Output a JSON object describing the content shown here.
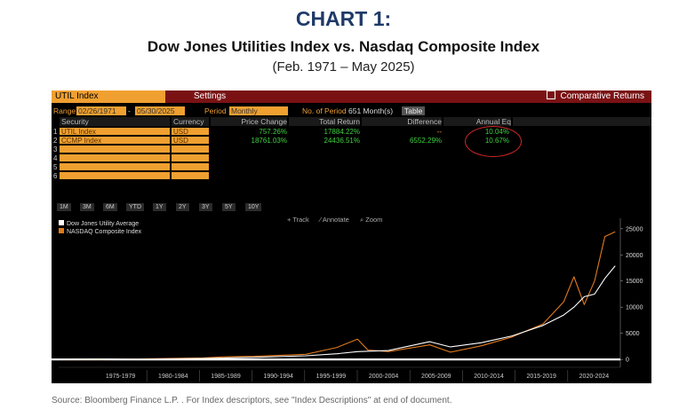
{
  "header": {
    "title": "CHART 1:",
    "subtitle": "Dow Jones Utilities Index vs. Nasdaq Composite Index",
    "date_range": "(Feb. 1971 – May 2025)"
  },
  "terminal": {
    "tabs": {
      "util": "UTIL Index",
      "settings": "Settings",
      "comparative": "Comparative Returns"
    },
    "range": {
      "range_label": "Range",
      "start": "02/26/1971",
      "dash": "-",
      "end": "05/30/2025",
      "period_label": "Period",
      "period": "Monthly",
      "nop_label": "No. of Period",
      "nop_value": "651 Month(s)",
      "table_btn": "Table"
    },
    "columns": {
      "security": "Security",
      "currency": "Currency",
      "price_change": "Price Change",
      "total_return": "Total Return",
      "difference": "Difference",
      "annual_eq": "Annual Eq"
    },
    "rows": [
      {
        "num": "1",
        "security": "UTIL Index",
        "currency": "USD",
        "price_change": "757.26%",
        "total_return": "17884.22%",
        "difference": "--",
        "annual_eq": "10.04%"
      },
      {
        "num": "2",
        "security": "CCMP Index",
        "currency": "USD",
        "price_change": "18761.03%",
        "total_return": "24436.51%",
        "difference": "6552.29%",
        "annual_eq": "10.67%"
      },
      {
        "num": "3"
      },
      {
        "num": "4"
      },
      {
        "num": "5"
      },
      {
        "num": "6"
      }
    ],
    "period_buttons": [
      "1M",
      "3M",
      "6M",
      "YTD",
      "1Y",
      "2Y",
      "3Y",
      "5Y",
      "10Y"
    ],
    "toolbar": {
      "track": "+ Track",
      "annotate": "⁄ Annotate",
      "zoom": "⌕ Zoom"
    }
  },
  "chart_data": {
    "type": "line",
    "series": [
      {
        "name": "Dow Jones Utility Average",
        "color": "#ffffff",
        "x": [
          1971,
          1975,
          1980,
          1985,
          1987,
          1990,
          1995,
          1998,
          2000,
          2003,
          2007,
          2009,
          2012,
          2015,
          2018,
          2020,
          2021,
          2022,
          2023,
          2024,
          2025
        ],
        "y": [
          0,
          20,
          80,
          180,
          280,
          400,
          700,
          1100,
          1500,
          1700,
          3400,
          2400,
          3200,
          4500,
          6500,
          8500,
          10000,
          12000,
          12500,
          15500,
          17900
        ]
      },
      {
        "name": "NASDAQ Composite Index",
        "color": "#e07a1c",
        "x": [
          1971,
          1975,
          1980,
          1985,
          1987,
          1990,
          1995,
          1998,
          2000,
          2001,
          2003,
          2007,
          2009,
          2012,
          2015,
          2018,
          2020,
          2021,
          2022,
          2023,
          2024,
          2025
        ],
        "y": [
          0,
          -20,
          150,
          300,
          500,
          600,
          1000,
          2300,
          3900,
          1800,
          1500,
          2800,
          1400,
          2600,
          4300,
          6800,
          11000,
          15800,
          10500,
          15000,
          23500,
          24400
        ]
      }
    ],
    "xlabels": [
      "1975-1979",
      "1980-1984",
      "1985-1989",
      "1990-1994",
      "1995-1999",
      "2000-2004",
      "2005-2009",
      "2010-2014",
      "2015-2019",
      "2020-2024"
    ],
    "ylim": [
      -1500,
      27000
    ],
    "yticks": [
      0,
      5000,
      10000,
      15000,
      20000,
      25000
    ],
    "x_range": [
      1971,
      2025.5
    ],
    "grid": false,
    "legend_position": "top-left"
  },
  "source": "Source: Bloomberg Finance L.P. . For Index descriptors, see \"Index Descriptions\" at end of document."
}
